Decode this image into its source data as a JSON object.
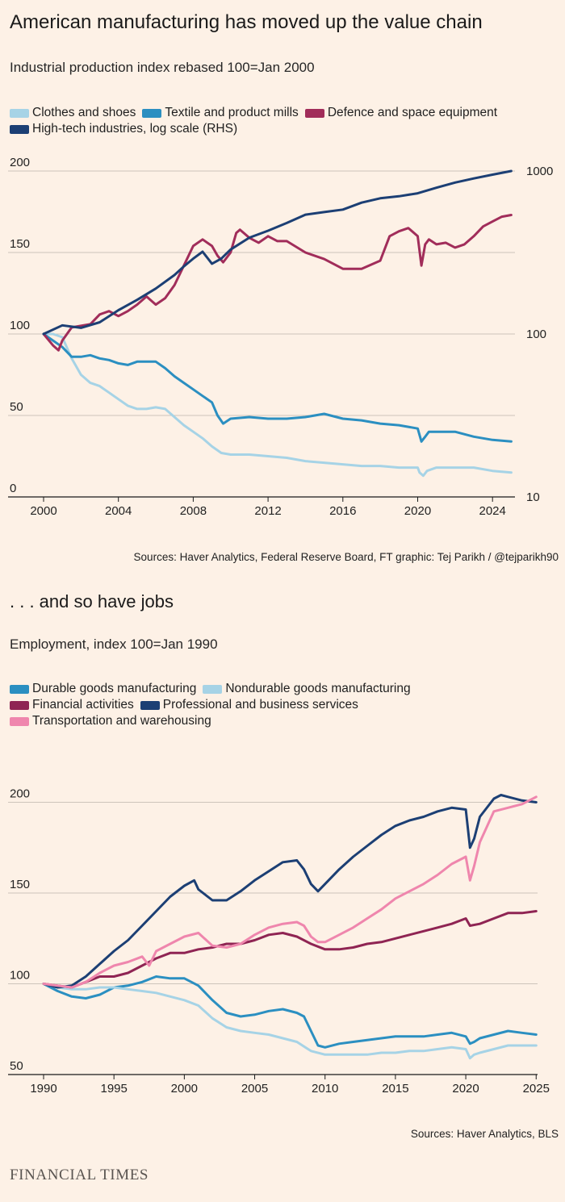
{
  "chart1": {
    "title": "American manufacturing has moved up the value chain",
    "subtitle": "Industrial production index rebased 100=Jan 2000",
    "source": "Sources: Haver Analytics, Federal Reserve Board, FT graphic: Tej Parikh / @tejparikh90",
    "legend": [
      {
        "label": "Clothes and shoes",
        "color": "#a6d3e6"
      },
      {
        "label": "Textile and product mills",
        "color": "#2b8fc1"
      },
      {
        "label": "Defence and space equipment",
        "color": "#a12d5a"
      },
      {
        "label": "High-tech industries, log scale (RHS)",
        "color": "#1c3f74"
      }
    ]
  },
  "chart2": {
    "title": ". . . and so have jobs",
    "subtitle": "Employment, index 100=Jan 1990",
    "source": "Sources: Haver Analytics, BLS",
    "legend": [
      {
        "label": "Durable goods manufacturing",
        "color": "#2b8fc1"
      },
      {
        "label": "Nondurable goods manufacturing",
        "color": "#a6d3e6"
      },
      {
        "label": "Financial activities",
        "color": "#8f2453"
      },
      {
        "label": "Professional and business services",
        "color": "#1c3f74"
      },
      {
        "label": "Transportation and warehousing",
        "color": "#ef86ad"
      }
    ]
  },
  "footer": {
    "logo": "FINANCIAL TIMES"
  },
  "chart_data": [
    {
      "type": "line",
      "title": "American manufacturing has moved up the value chain",
      "subtitle": "Industrial production index rebased 100=Jan 2000",
      "xlabel": "",
      "ylabel": "",
      "xlim": [
        2000,
        2025.2
      ],
      "ylim": [
        0,
        200
      ],
      "y_ticks": [
        0,
        50,
        100,
        150,
        200
      ],
      "x_ticks": [
        2000,
        2004,
        2008,
        2012,
        2016,
        2020,
        2024
      ],
      "y2_log": true,
      "y2lim": [
        10,
        1000
      ],
      "y2_ticks": [
        10,
        100,
        1000
      ],
      "series": [
        {
          "name": "Clothes and shoes",
          "color": "#a6d3e6",
          "axis": "left",
          "x": [
            2000,
            2000.5,
            2001,
            2001.5,
            2002,
            2002.5,
            2003,
            2003.5,
            2004,
            2004.5,
            2005,
            2005.5,
            2006,
            2006.5,
            2007,
            2007.5,
            2008,
            2008.5,
            2009,
            2009.5,
            2010,
            2011,
            2012,
            2013,
            2014,
            2015,
            2016,
            2017,
            2018,
            2019,
            2020,
            2020.1,
            2020.3,
            2020.5,
            2021,
            2022,
            2023,
            2024,
            2025
          ],
          "values": [
            100,
            100,
            98,
            85,
            75,
            70,
            68,
            64,
            60,
            56,
            54,
            54,
            55,
            54,
            49,
            44,
            40,
            36,
            31,
            27,
            26,
            26,
            25,
            24,
            22,
            21,
            20,
            19,
            19,
            18,
            18,
            15,
            13,
            16,
            18,
            18,
            18,
            16,
            15
          ]
        },
        {
          "name": "Textile and product mills",
          "color": "#2b8fc1",
          "axis": "left",
          "x": [
            2000,
            2000.5,
            2001,
            2001.5,
            2002,
            2002.5,
            2003,
            2003.5,
            2004,
            2004.5,
            2005,
            2005.5,
            2006,
            2006.5,
            2007,
            2007.5,
            2008,
            2008.5,
            2009,
            2009.3,
            2009.6,
            2010,
            2011,
            2012,
            2013,
            2014,
            2015,
            2016,
            2017,
            2018,
            2019,
            2020,
            2020.2,
            2020.4,
            2020.6,
            2021,
            2022,
            2023,
            2024,
            2025
          ],
          "values": [
            100,
            96,
            92,
            86,
            86,
            87,
            85,
            84,
            82,
            81,
            83,
            83,
            83,
            79,
            74,
            70,
            66,
            62,
            58,
            50,
            45,
            48,
            49,
            48,
            48,
            49,
            51,
            48,
            47,
            45,
            44,
            42,
            34,
            37,
            40,
            40,
            40,
            37,
            35,
            34
          ]
        },
        {
          "name": "Defence and space equipment",
          "color": "#a12d5a",
          "axis": "left",
          "x": [
            2000,
            2000.5,
            2000.8,
            2001,
            2001.5,
            2002,
            2002.5,
            2003,
            2003.5,
            2004,
            2004.5,
            2005,
            2005.5,
            2006,
            2006.5,
            2007,
            2007.5,
            2008,
            2008.5,
            2009,
            2009.3,
            2009.6,
            2010,
            2010.3,
            2010.5,
            2011,
            2011.5,
            2012,
            2012.5,
            2013,
            2014,
            2015,
            2016,
            2017,
            2018,
            2018.5,
            2019,
            2019.5,
            2020,
            2020.2,
            2020.4,
            2020.6,
            2021,
            2021.5,
            2022,
            2022.5,
            2023,
            2023.5,
            2024,
            2024.5,
            2025
          ],
          "values": [
            100,
            93,
            90,
            96,
            104,
            105,
            106,
            112,
            114,
            111,
            114,
            118,
            123,
            118,
            122,
            130,
            142,
            154,
            158,
            154,
            148,
            144,
            150,
            162,
            164,
            159,
            156,
            160,
            157,
            157,
            150,
            146,
            140,
            140,
            145,
            160,
            163,
            165,
            160,
            142,
            155,
            158,
            155,
            156,
            153,
            155,
            160,
            166,
            169,
            172,
            173
          ]
        },
        {
          "name": "High-tech industries, log scale (RHS)",
          "color": "#1c3f74",
          "axis": "right",
          "x": [
            2000,
            2001,
            2002,
            2003,
            2004,
            2005,
            2006,
            2007,
            2007.5,
            2008,
            2008.5,
            2009,
            2009.5,
            2010,
            2011,
            2012,
            2013,
            2014,
            2015,
            2016,
            2017,
            2018,
            2019,
            2020,
            2021,
            2022,
            2023,
            2024,
            2025
          ],
          "values": [
            100,
            113,
            109,
            118,
            140,
            162,
            190,
            230,
            260,
            290,
            320,
            270,
            290,
            330,
            390,
            430,
            480,
            540,
            560,
            580,
            640,
            680,
            700,
            730,
            790,
            850,
            900,
            950,
            1000
          ]
        }
      ]
    },
    {
      "type": "line",
      "title": ". . . and so have jobs",
      "subtitle": "Employment, index 100=Jan 1990",
      "xlabel": "",
      "ylabel": "",
      "xlim": [
        1990,
        2025.1
      ],
      "ylim": [
        50,
        210
      ],
      "y_ticks": [
        50,
        100,
        150,
        200
      ],
      "x_ticks": [
        1990,
        1995,
        2000,
        2005,
        2010,
        2015,
        2020,
        2025
      ],
      "series": [
        {
          "name": "Durable goods manufacturing",
          "color": "#2b8fc1",
          "x": [
            1990,
            1991,
            1992,
            1993,
            1994,
            1995,
            1996,
            1997,
            1998,
            1999,
            2000,
            2001,
            2002,
            2003,
            2004,
            2005,
            2006,
            2007,
            2008,
            2008.5,
            2009,
            2009.5,
            2010,
            2011,
            2012,
            2013,
            2014,
            2015,
            2016,
            2017,
            2018,
            2019,
            2020,
            2020.3,
            2020.6,
            2021,
            2022,
            2023,
            2024,
            2025
          ],
          "values": [
            100,
            96,
            93,
            92,
            94,
            98,
            99,
            101,
            104,
            103,
            103,
            99,
            91,
            84,
            82,
            83,
            85,
            86,
            84,
            82,
            74,
            66,
            65,
            67,
            68,
            69,
            70,
            71,
            71,
            71,
            72,
            73,
            71,
            67,
            68,
            70,
            72,
            74,
            73,
            72
          ]
        },
        {
          "name": "Nondurable goods manufacturing",
          "color": "#a6d3e6",
          "x": [
            1990,
            1991,
            1992,
            1993,
            1994,
            1995,
            1996,
            1997,
            1998,
            1999,
            2000,
            2001,
            2002,
            2003,
            2004,
            2005,
            2006,
            2007,
            2008,
            2009,
            2010,
            2011,
            2012,
            2013,
            2014,
            2015,
            2016,
            2017,
            2018,
            2019,
            2020,
            2020.3,
            2020.6,
            2021,
            2022,
            2023,
            2024,
            2025
          ],
          "values": [
            100,
            98,
            97,
            97,
            98,
            98,
            97,
            96,
            95,
            93,
            91,
            88,
            81,
            76,
            74,
            73,
            72,
            70,
            68,
            63,
            61,
            61,
            61,
            61,
            62,
            62,
            63,
            63,
            64,
            65,
            64,
            59,
            61,
            62,
            64,
            66,
            66,
            66
          ]
        },
        {
          "name": "Financial activities",
          "color": "#8f2453",
          "x": [
            1990,
            1991,
            1992,
            1993,
            1994,
            1995,
            1996,
            1997,
            1998,
            1999,
            2000,
            2001,
            2002,
            2003,
            2004,
            2005,
            2006,
            2007,
            2008,
            2009,
            2010,
            2011,
            2012,
            2013,
            2014,
            2015,
            2016,
            2017,
            2018,
            2019,
            2020,
            2020.3,
            2021,
            2022,
            2023,
            2024,
            2025
          ],
          "values": [
            100,
            99,
            98,
            101,
            104,
            104,
            106,
            110,
            114,
            117,
            117,
            119,
            120,
            122,
            122,
            124,
            127,
            128,
            126,
            122,
            119,
            119,
            120,
            122,
            123,
            125,
            127,
            129,
            131,
            133,
            136,
            132,
            133,
            136,
            139,
            139,
            140
          ]
        },
        {
          "name": "Professional and business services",
          "color": "#1c3f74",
          "x": [
            1990,
            1991,
            1992,
            1993,
            1994,
            1995,
            1996,
            1997,
            1998,
            1999,
            2000,
            2000.7,
            2001,
            2002,
            2003,
            2004,
            2005,
            2006,
            2007,
            2008,
            2008.5,
            2009,
            2009.5,
            2010,
            2011,
            2012,
            2013,
            2014,
            2015,
            2016,
            2017,
            2018,
            2019,
            2020,
            2020.3,
            2020.6,
            2021,
            2022,
            2022.5,
            2023,
            2024,
            2025
          ],
          "values": [
            100,
            98,
            99,
            104,
            111,
            118,
            124,
            132,
            140,
            148,
            154,
            157,
            152,
            146,
            146,
            151,
            157,
            162,
            167,
            168,
            163,
            155,
            151,
            155,
            163,
            170,
            176,
            182,
            187,
            190,
            192,
            195,
            197,
            196,
            175,
            180,
            192,
            202,
            204,
            203,
            201,
            200
          ]
        },
        {
          "name": "Transportation and warehousing",
          "color": "#ef86ad",
          "x": [
            1990,
            1991,
            1992,
            1993,
            1994,
            1995,
            1996,
            1997,
            1997.5,
            1998,
            1999,
            2000,
            2001,
            2002,
            2003,
            2004,
            2005,
            2006,
            2007,
            2008,
            2008.5,
            2009,
            2009.5,
            2010,
            2011,
            2012,
            2013,
            2014,
            2015,
            2016,
            2017,
            2018,
            2019,
            2020,
            2020.3,
            2020.6,
            2021,
            2022,
            2023,
            2024,
            2025
          ],
          "values": [
            100,
            99,
            98,
            101,
            106,
            110,
            112,
            115,
            110,
            118,
            122,
            126,
            128,
            121,
            120,
            122,
            127,
            131,
            133,
            134,
            132,
            126,
            123,
            123,
            127,
            131,
            136,
            141,
            147,
            151,
            155,
            160,
            166,
            170,
            157,
            165,
            178,
            195,
            197,
            199,
            203
          ]
        }
      ]
    }
  ]
}
